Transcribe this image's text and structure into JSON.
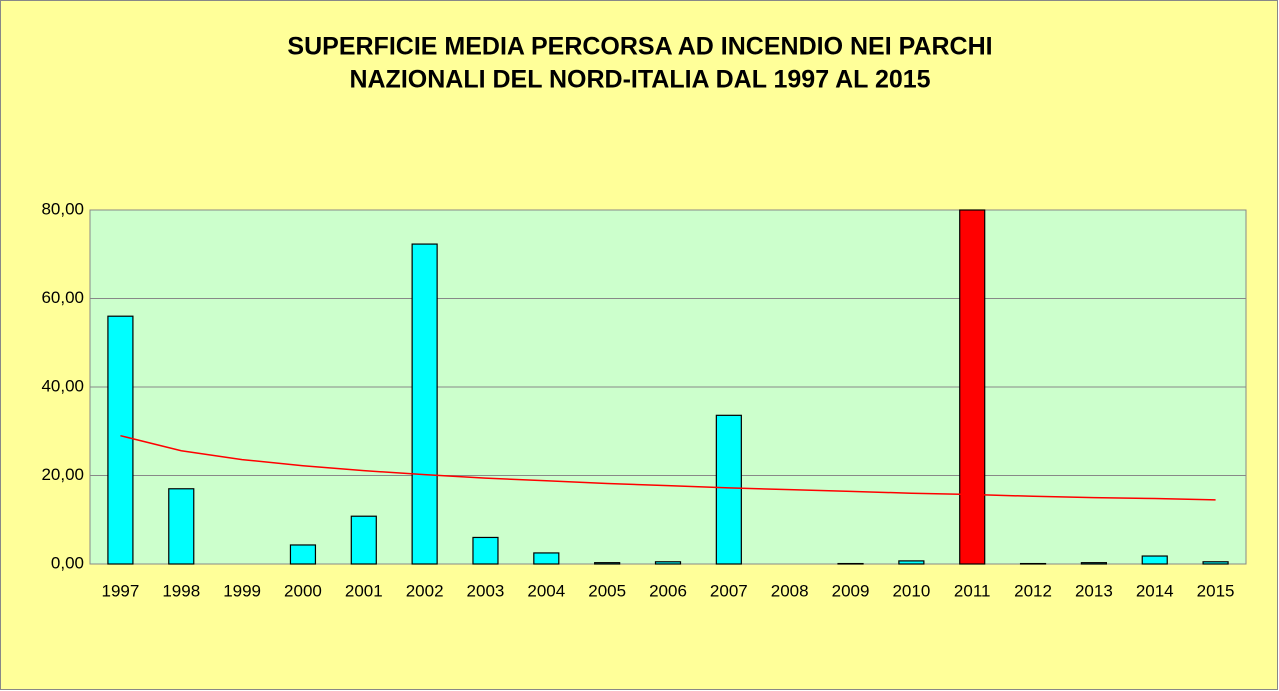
{
  "chart_data": {
    "type": "bar",
    "title": [
      "SUPERFICIE MEDIA PERCORSA AD INCENDIO NEI PARCHI",
      "NAZIONALI DEL NORD-ITALIA DAL 1997 AL 2015"
    ],
    "categories": [
      "1997",
      "1998",
      "1999",
      "2000",
      "2001",
      "2002",
      "2003",
      "2004",
      "2005",
      "2006",
      "2007",
      "2008",
      "2009",
      "2010",
      "2011",
      "2012",
      "2013",
      "2014",
      "2015"
    ],
    "values": [
      56,
      17,
      0,
      4.3,
      10.8,
      72.3,
      6,
      2.5,
      0.3,
      0.5,
      33.6,
      0,
      0.1,
      0.7,
      80,
      0.1,
      0.3,
      1.8,
      0.5
    ],
    "colors": [
      "#00ffff",
      "#00ffff",
      "#00ffff",
      "#00ffff",
      "#00ffff",
      "#00ffff",
      "#00ffff",
      "#00ffff",
      "#00ffff",
      "#00ffff",
      "#00ffff",
      "#00ffff",
      "#00ffff",
      "#00ffff",
      "#ff0000",
      "#00ffff",
      "#00ffff",
      "#00ffff",
      "#00ffff"
    ],
    "trendline": {
      "color": "#ff0000",
      "values": [
        29.0,
        25.6,
        23.6,
        22.2,
        21.1,
        20.2,
        19.4,
        18.8,
        18.2,
        17.7,
        17.2,
        16.8,
        16.4,
        16.0,
        15.7,
        15.3,
        15.0,
        14.8,
        14.5
      ]
    },
    "ylim": [
      0,
      80
    ],
    "yticks": [
      {
        "value": 0,
        "label": "0,00"
      },
      {
        "value": 20,
        "label": "20,00"
      },
      {
        "value": 40,
        "label": "40,00"
      },
      {
        "value": 60,
        "label": "60,00"
      },
      {
        "value": 80,
        "label": "80,00"
      }
    ],
    "grid": true
  }
}
